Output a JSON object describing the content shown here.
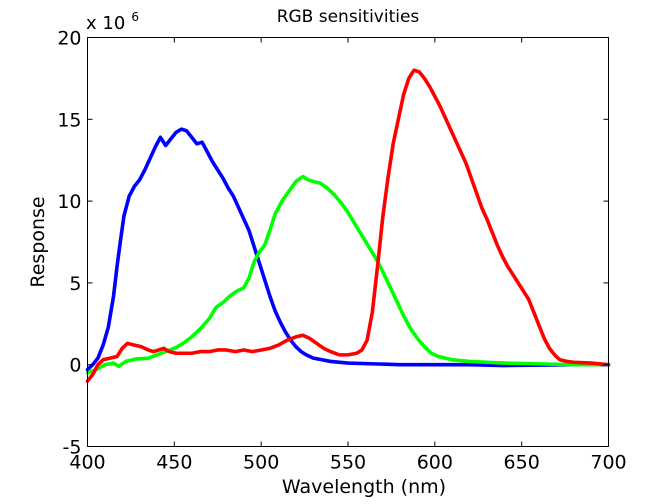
{
  "chart_data": {
    "type": "line",
    "title": "RGB sensitivities",
    "xlabel": "Wavelength (nm)",
    "ylabel": "Response",
    "xlim": [
      400,
      700
    ],
    "ylim": [
      -5,
      20
    ],
    "y_multiplier_base": "x 10",
    "y_multiplier_exp": "6",
    "x_ticks": [
      400,
      450,
      500,
      550,
      600,
      650,
      700
    ],
    "x_tick_labels": [
      "400",
      "450",
      "500",
      "550",
      "600",
      "650",
      "700"
    ],
    "y_ticks": [
      -5,
      0,
      5,
      10,
      15,
      20
    ],
    "y_tick_labels": [
      "-5",
      "0",
      "5",
      "10",
      "15",
      "20"
    ],
    "grid": false,
    "legend": false,
    "series": [
      {
        "color": "#0000ff",
        "points": [
          [
            400,
            -0.3
          ],
          [
            403,
            0.0
          ],
          [
            406,
            0.4
          ],
          [
            409,
            1.2
          ],
          [
            412,
            2.3
          ],
          [
            415,
            4.2
          ],
          [
            417,
            6.0
          ],
          [
            419,
            7.6
          ],
          [
            421,
            9.1
          ],
          [
            424,
            10.3
          ],
          [
            427,
            10.9
          ],
          [
            430,
            11.3
          ],
          [
            433,
            11.9
          ],
          [
            436,
            12.6
          ],
          [
            439,
            13.3
          ],
          [
            442,
            13.9
          ],
          [
            445,
            13.4
          ],
          [
            448,
            13.8
          ],
          [
            451,
            14.2
          ],
          [
            454,
            14.4
          ],
          [
            457,
            14.3
          ],
          [
            460,
            13.9
          ],
          [
            463,
            13.5
          ],
          [
            466,
            13.6
          ],
          [
            469,
            13.0
          ],
          [
            472,
            12.4
          ],
          [
            475,
            11.9
          ],
          [
            478,
            11.4
          ],
          [
            481,
            10.8
          ],
          [
            484,
            10.3
          ],
          [
            487,
            9.6
          ],
          [
            490,
            8.9
          ],
          [
            493,
            8.2
          ],
          [
            496,
            7.2
          ],
          [
            499,
            6.2
          ],
          [
            502,
            5.2
          ],
          [
            505,
            4.2
          ],
          [
            508,
            3.3
          ],
          [
            511,
            2.6
          ],
          [
            514,
            2.0
          ],
          [
            517,
            1.5
          ],
          [
            520,
            1.1
          ],
          [
            523,
            0.8
          ],
          [
            526,
            0.6
          ],
          [
            530,
            0.4
          ],
          [
            535,
            0.3
          ],
          [
            540,
            0.2
          ],
          [
            550,
            0.1
          ],
          [
            565,
            0.05
          ],
          [
            580,
            0.0
          ],
          [
            620,
            0.0
          ],
          [
            640,
            -0.05
          ],
          [
            680,
            0.0
          ],
          [
            700,
            0.0
          ]
        ]
      },
      {
        "color": "#00ff00",
        "points": [
          [
            400,
            -0.5
          ],
          [
            405,
            -0.3
          ],
          [
            410,
            0.0
          ],
          [
            415,
            0.1
          ],
          [
            418,
            -0.1
          ],
          [
            422,
            0.2
          ],
          [
            428,
            0.35
          ],
          [
            435,
            0.4
          ],
          [
            440,
            0.6
          ],
          [
            445,
            0.8
          ],
          [
            450,
            1.0
          ],
          [
            455,
            1.3
          ],
          [
            460,
            1.7
          ],
          [
            465,
            2.2
          ],
          [
            470,
            2.8
          ],
          [
            474,
            3.5
          ],
          [
            478,
            3.8
          ],
          [
            482,
            4.2
          ],
          [
            486,
            4.5
          ],
          [
            490,
            4.7
          ],
          [
            493,
            5.3
          ],
          [
            496,
            6.3
          ],
          [
            499,
            6.9
          ],
          [
            502,
            7.3
          ],
          [
            505,
            8.2
          ],
          [
            508,
            9.2
          ],
          [
            512,
            10.0
          ],
          [
            516,
            10.6
          ],
          [
            520,
            11.2
          ],
          [
            524,
            11.5
          ],
          [
            527,
            11.3
          ],
          [
            530,
            11.2
          ],
          [
            534,
            11.1
          ],
          [
            538,
            10.8
          ],
          [
            542,
            10.4
          ],
          [
            546,
            9.9
          ],
          [
            550,
            9.3
          ],
          [
            554,
            8.6
          ],
          [
            558,
            7.9
          ],
          [
            562,
            7.2
          ],
          [
            566,
            6.5
          ],
          [
            570,
            5.7
          ],
          [
            574,
            4.8
          ],
          [
            578,
            3.9
          ],
          [
            582,
            3.0
          ],
          [
            586,
            2.2
          ],
          [
            590,
            1.6
          ],
          [
            594,
            1.1
          ],
          [
            598,
            0.7
          ],
          [
            602,
            0.5
          ],
          [
            610,
            0.3
          ],
          [
            620,
            0.2
          ],
          [
            630,
            0.15
          ],
          [
            640,
            0.1
          ],
          [
            660,
            0.05
          ],
          [
            680,
            0.0
          ],
          [
            695,
            0.0
          ]
        ]
      },
      {
        "color": "#ff0000",
        "points": [
          [
            400,
            -1.0
          ],
          [
            403,
            -0.6
          ],
          [
            406,
            0.0
          ],
          [
            409,
            0.3
          ],
          [
            413,
            0.4
          ],
          [
            417,
            0.5
          ],
          [
            420,
            1.0
          ],
          [
            423,
            1.3
          ],
          [
            427,
            1.2
          ],
          [
            431,
            1.1
          ],
          [
            435,
            0.9
          ],
          [
            438,
            0.8
          ],
          [
            441,
            0.9
          ],
          [
            444,
            1.0
          ],
          [
            447,
            0.8
          ],
          [
            451,
            0.7
          ],
          [
            456,
            0.7
          ],
          [
            460,
            0.7
          ],
          [
            465,
            0.8
          ],
          [
            470,
            0.8
          ],
          [
            475,
            0.9
          ],
          [
            480,
            0.9
          ],
          [
            485,
            0.8
          ],
          [
            490,
            0.9
          ],
          [
            495,
            0.8
          ],
          [
            500,
            0.9
          ],
          [
            505,
            1.0
          ],
          [
            510,
            1.2
          ],
          [
            515,
            1.5
          ],
          [
            520,
            1.7
          ],
          [
            524,
            1.8
          ],
          [
            528,
            1.6
          ],
          [
            532,
            1.3
          ],
          [
            536,
            1.0
          ],
          [
            540,
            0.8
          ],
          [
            545,
            0.6
          ],
          [
            550,
            0.6
          ],
          [
            555,
            0.7
          ],
          [
            558,
            0.9
          ],
          [
            561,
            1.5
          ],
          [
            564,
            3.2
          ],
          [
            567,
            6.0
          ],
          [
            570,
            9.0
          ],
          [
            573,
            11.4
          ],
          [
            576,
            13.5
          ],
          [
            579,
            15.0
          ],
          [
            582,
            16.5
          ],
          [
            585,
            17.5
          ],
          [
            588,
            18.0
          ],
          [
            591,
            17.9
          ],
          [
            594,
            17.5
          ],
          [
            597,
            17.0
          ],
          [
            600,
            16.4
          ],
          [
            603,
            15.8
          ],
          [
            606,
            15.1
          ],
          [
            609,
            14.4
          ],
          [
            612,
            13.7
          ],
          [
            615,
            13.0
          ],
          [
            618,
            12.3
          ],
          [
            621,
            11.4
          ],
          [
            624,
            10.5
          ],
          [
            627,
            9.6
          ],
          [
            630,
            8.9
          ],
          [
            633,
            8.1
          ],
          [
            636,
            7.3
          ],
          [
            639,
            6.6
          ],
          [
            642,
            6.0
          ],
          [
            645,
            5.5
          ],
          [
            648,
            5.0
          ],
          [
            651,
            4.5
          ],
          [
            654,
            4.0
          ],
          [
            657,
            3.2
          ],
          [
            660,
            2.4
          ],
          [
            663,
            1.6
          ],
          [
            666,
            1.0
          ],
          [
            669,
            0.6
          ],
          [
            672,
            0.3
          ],
          [
            676,
            0.2
          ],
          [
            680,
            0.15
          ],
          [
            690,
            0.1
          ],
          [
            700,
            0.0
          ]
        ]
      }
    ]
  }
}
